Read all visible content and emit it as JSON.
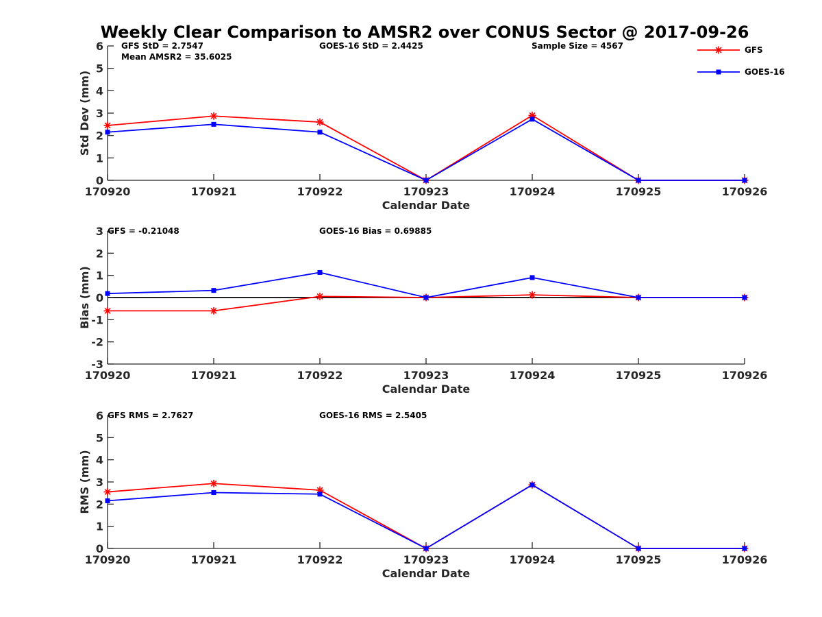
{
  "title": "Weekly Clear Comparison to AMSR2 over CONUS Sector @ 2017-09-26",
  "legend": {
    "placement": "top-right",
    "entries": [
      {
        "name": "GFS",
        "color": "#ff0000",
        "marker": "asterisk"
      },
      {
        "name": "GOES-16",
        "color": "#0000ff",
        "marker": "square"
      }
    ]
  },
  "chart_data": [
    {
      "type": "line",
      "xlabel": "Calendar Date",
      "ylabel": "Std Dev (mm)",
      "x": [
        "170920",
        "170921",
        "170922",
        "170923",
        "170924",
        "170925",
        "170926"
      ],
      "ylim": [
        0,
        6
      ],
      "yticks": [
        0,
        1,
        2,
        3,
        4,
        5,
        6
      ],
      "zero_line": false,
      "annotations": [
        "GFS StD = 2.7547",
        "Mean AMSR2 = 35.6025",
        "GOES-16 StD = 2.4425",
        "Sample Size = 4567"
      ],
      "series": [
        {
          "name": "GFS",
          "color": "#ff0000",
          "marker": "asterisk",
          "values": [
            2.45,
            2.87,
            2.6,
            0,
            2.9,
            0,
            0
          ]
        },
        {
          "name": "GOES-16",
          "color": "#0000ff",
          "marker": "square",
          "values": [
            2.15,
            2.5,
            2.15,
            0,
            2.73,
            0,
            0
          ]
        }
      ]
    },
    {
      "type": "line",
      "xlabel": "Calendar Date",
      "ylabel": "Bias (mm)",
      "x": [
        "170920",
        "170921",
        "170922",
        "170923",
        "170924",
        "170925",
        "170926"
      ],
      "ylim": [
        -3,
        3
      ],
      "yticks": [
        -3,
        -2,
        -1,
        0,
        1,
        2,
        3
      ],
      "zero_line": true,
      "annotations": [
        "GFS = -0.21048",
        "GOES-16 Bias  = 0.69885"
      ],
      "series": [
        {
          "name": "GFS",
          "color": "#ff0000",
          "marker": "asterisk",
          "values": [
            -0.6,
            -0.6,
            0.05,
            0,
            0.12,
            0,
            0
          ]
        },
        {
          "name": "GOES-16",
          "color": "#0000ff",
          "marker": "square",
          "values": [
            0.18,
            0.32,
            1.13,
            0,
            0.9,
            0,
            0
          ]
        }
      ]
    },
    {
      "type": "line",
      "xlabel": "Calendar Date",
      "ylabel": "RMS (mm)",
      "x": [
        "170920",
        "170921",
        "170922",
        "170923",
        "170924",
        "170925",
        "170926"
      ],
      "ylim": [
        0,
        6
      ],
      "yticks": [
        0,
        1,
        2,
        3,
        4,
        5,
        6
      ],
      "zero_line": false,
      "annotations": [
        "GFS RMS = 2.7627",
        "GOES-16 RMS = 2.5405"
      ],
      "series": [
        {
          "name": "GFS",
          "color": "#ff0000",
          "marker": "asterisk",
          "values": [
            2.55,
            2.93,
            2.63,
            0,
            2.87,
            0,
            0
          ]
        },
        {
          "name": "GOES-16",
          "color": "#0000ff",
          "marker": "square",
          "values": [
            2.15,
            2.52,
            2.45,
            0,
            2.87,
            0,
            0
          ]
        }
      ]
    }
  ]
}
